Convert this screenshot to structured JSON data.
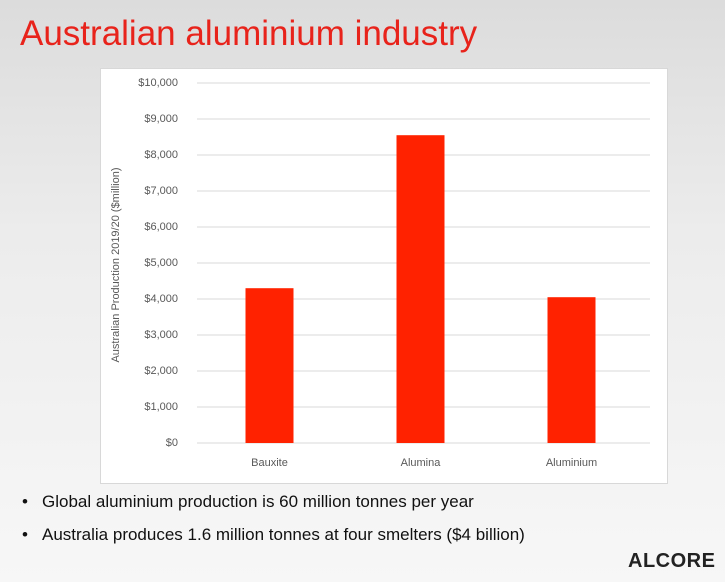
{
  "slide_title": "Australian aluminium industry",
  "chart_data": {
    "type": "bar",
    "y_label": "Australian Production 2019/20 ($million)",
    "categories": [
      "Bauxite",
      "Alumina",
      "Aluminium"
    ],
    "values": [
      4300,
      8550,
      4050
    ],
    "color": "#ff2200",
    "ylim": [
      0,
      10000
    ],
    "yticks": [
      {
        "value": 0,
        "label": "$0"
      },
      {
        "value": 1000,
        "label": "$1,000"
      },
      {
        "value": 2000,
        "label": "$2,000"
      },
      {
        "value": 3000,
        "label": "$3,000"
      },
      {
        "value": 4000,
        "label": "$4,000"
      },
      {
        "value": 5000,
        "label": "$5,000"
      },
      {
        "value": 6000,
        "label": "$6,000"
      },
      {
        "value": 7000,
        "label": "$7,000"
      },
      {
        "value": 8000,
        "label": "$8,000"
      },
      {
        "value": 9000,
        "label": "$9,000"
      },
      {
        "value": 10000,
        "label": "$10,000"
      }
    ],
    "grid": true
  },
  "bullets": [
    "Global aluminium production is 60 million tonnes per year",
    "Australia produces 1.6 million tonnes at four smelters ($4 billion)"
  ],
  "logo": "ALCORE"
}
